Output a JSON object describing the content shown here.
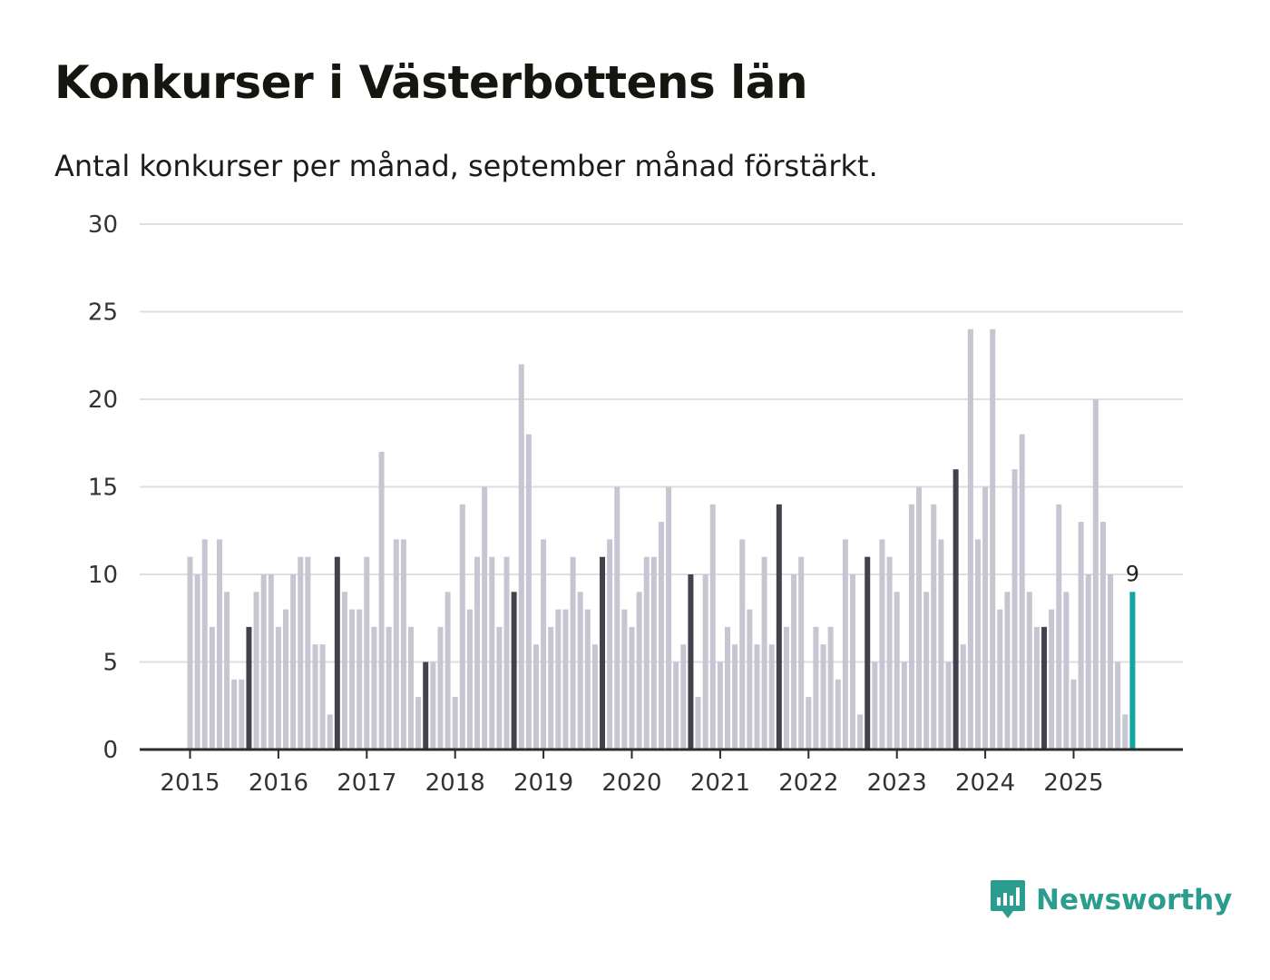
{
  "title": "Konkurser i Västerbottens län",
  "subtitle": "Antal konkurser per månad, september månad förstärkt.",
  "brand": {
    "name": "Newsworthy",
    "icon": "newsworthy-logo-icon",
    "color": "#2a9d8f"
  },
  "colors": {
    "normal": "#c6c5d2",
    "highlight": "#44414f",
    "current": "#11a69f",
    "grid": "#dedee3",
    "axis": "#2b2b2b"
  },
  "chart_data": {
    "type": "bar",
    "title": "Konkurser i Västerbottens län",
    "subtitle": "Antal konkurser per månad, september månad förstärkt.",
    "xlabel": "",
    "ylabel": "",
    "ylim": [
      0,
      30
    ],
    "yticks": [
      0,
      5,
      10,
      15,
      20,
      25,
      30
    ],
    "xtick_labels": [
      "2015",
      "2016",
      "2017",
      "2018",
      "2019",
      "2020",
      "2021",
      "2022",
      "2023",
      "2024",
      "2025"
    ],
    "start": "2015-01",
    "end": "2025-09",
    "highlight_month": "september",
    "values": [
      11,
      10,
      12,
      7,
      12,
      9,
      4,
      4,
      7,
      9,
      10,
      10,
      7,
      8,
      10,
      11,
      11,
      6,
      6,
      2,
      11,
      9,
      8,
      8,
      11,
      7,
      17,
      7,
      12,
      12,
      7,
      3,
      5,
      5,
      7,
      9,
      3,
      14,
      8,
      11,
      15,
      11,
      7,
      11,
      9,
      22,
      18,
      6,
      12,
      7,
      8,
      8,
      11,
      9,
      8,
      6,
      11,
      12,
      15,
      8,
      7,
      9,
      11,
      11,
      13,
      15,
      5,
      6,
      10,
      3,
      10,
      14,
      5,
      7,
      6,
      12,
      8,
      6,
      11,
      6,
      14,
      7,
      10,
      11,
      3,
      7,
      6,
      7,
      4,
      12,
      10,
      2,
      11,
      5,
      12,
      11,
      9,
      5,
      14,
      15,
      9,
      14,
      12,
      5,
      16,
      6,
      24,
      12,
      15,
      24,
      8,
      9,
      16,
      18,
      9,
      7,
      7,
      8,
      14,
      9,
      4,
      13,
      10,
      20,
      13,
      10,
      5,
      2,
      9
    ],
    "last_value_label": "9"
  }
}
